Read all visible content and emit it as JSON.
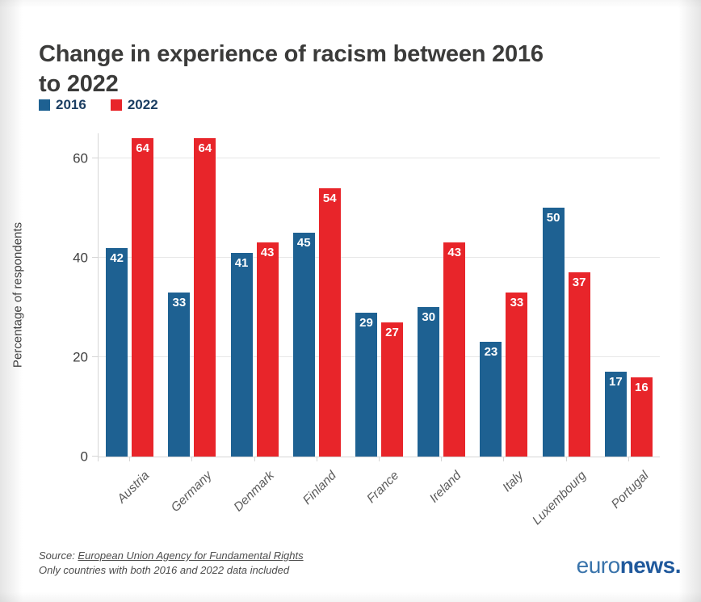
{
  "title": "Change in experience of racism between 2016\nto 2022",
  "chart_data": {
    "type": "bar",
    "title": "Change in experience of racism between 2016 to 2022",
    "categories": [
      "Austria",
      "Germany",
      "Denmark",
      "Finland",
      "France",
      "Ireland",
      "Italy",
      "Luxembourg",
      "Portugal"
    ],
    "series": [
      {
        "name": "2016",
        "color": "#1e6192",
        "values": [
          42,
          33,
          41,
          45,
          29,
          30,
          23,
          50,
          17
        ]
      },
      {
        "name": "2022",
        "color": "#e8252a",
        "values": [
          64,
          64,
          43,
          54,
          27,
          43,
          33,
          37,
          16
        ]
      }
    ],
    "xlabel": "",
    "ylabel": "Percentage of respondents",
    "yticks": [
      0,
      20,
      40,
      60
    ],
    "ylim": [
      0,
      65
    ],
    "grid": true,
    "legend_position": "top-left"
  },
  "footer": {
    "source_prefix": "Source: ",
    "source_link": "European Union Agency for Fundamental Rights",
    "note": "Only countries with both 2016 and 2022 data included",
    "logo": {
      "euro": "euro",
      "news": "news."
    }
  }
}
